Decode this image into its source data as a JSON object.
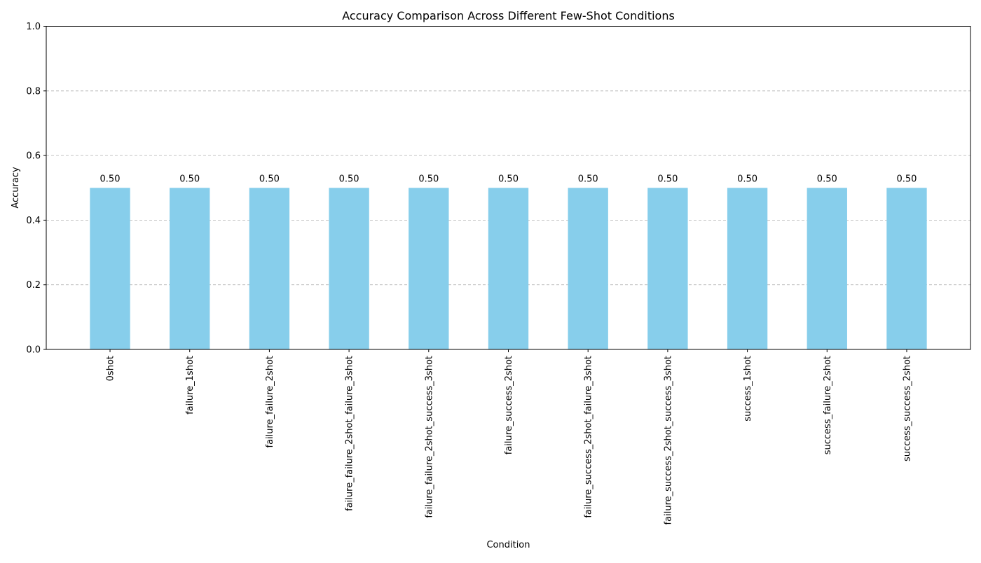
{
  "chart_data": {
    "type": "bar",
    "title": "Accuracy Comparison Across Different Few-Shot Conditions",
    "xlabel": "Condition",
    "ylabel": "Accuracy",
    "ylim": [
      0,
      1.0
    ],
    "yticks": [
      "0.0",
      "0.2",
      "0.4",
      "0.6",
      "0.8",
      "1.0"
    ],
    "grid": "y-dashed",
    "bar_color": "#87ceeb",
    "categories": [
      "0shot",
      "failure_1shot",
      "failure_failure_2shot",
      "failure_failure_2shot_failure_3shot",
      "failure_failure_2shot_success_3shot",
      "failure_success_2shot",
      "failure_success_2shot_failure_3shot",
      "failure_success_2shot_success_3shot",
      "success_1shot",
      "success_failure_2shot",
      "success_success_2shot"
    ],
    "values": [
      0.5,
      0.5,
      0.5,
      0.5,
      0.5,
      0.5,
      0.5,
      0.5,
      0.5,
      0.5,
      0.5
    ],
    "data_labels": [
      "0.50",
      "0.50",
      "0.50",
      "0.50",
      "0.50",
      "0.50",
      "0.50",
      "0.50",
      "0.50",
      "0.50",
      "0.50"
    ]
  }
}
